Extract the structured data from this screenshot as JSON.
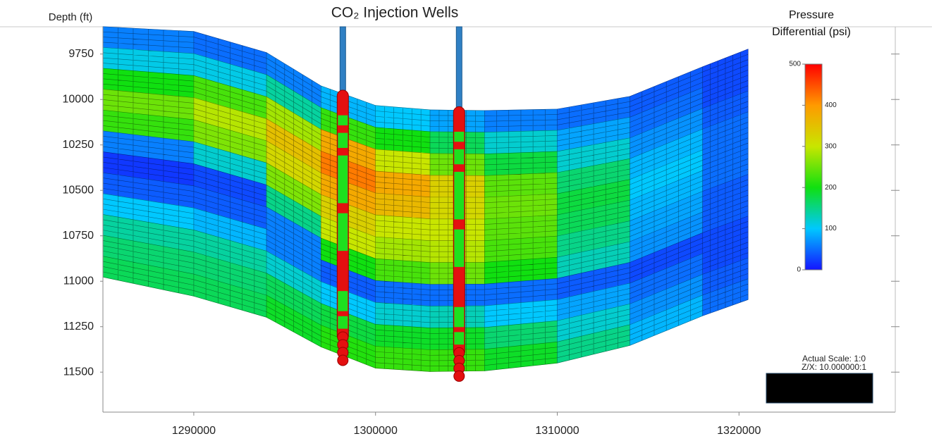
{
  "chart_data": {
    "type": "section",
    "title": "CO₂ Injection Wells",
    "y_label": "Depth (ft)",
    "colorbar_label": "Pressure Differential (psi)",
    "annotations": [
      "Actual Scale: 1:0",
      "Z/X: 10.000000:1"
    ],
    "xlim": [
      1285000,
      1328600
    ],
    "xticks": [
      1290000,
      1300000,
      1310000,
      1320000
    ],
    "ylim": [
      11720,
      9600
    ],
    "yticks": [
      9750,
      10000,
      10250,
      10500,
      10750,
      11000,
      11250,
      11500
    ],
    "clim": [
      0,
      500
    ],
    "cticks": [
      0,
      100,
      200,
      300,
      400,
      500
    ],
    "colorscale": [
      "#1414ff",
      "#00c8ff",
      "#10e010",
      "#c8e600",
      "#ff9a00",
      "#ff0000"
    ],
    "x": [
      1285000,
      1290000,
      1294000,
      1297000,
      1300000,
      1303000,
      1306000,
      1310000,
      1314000,
      1318000,
      1320500
    ],
    "top_depth": [
      9599,
      9626,
      9742,
      9925,
      10033,
      10057,
      10061,
      10053,
      9983,
      9820,
      9723
    ],
    "bottom_depth": [
      10977,
      11082,
      11198,
      11361,
      11478,
      11497,
      11493,
      11450,
      11353,
      11190,
      11101
    ],
    "z": [
      [
        60,
        50,
        60,
        90,
        100,
        80,
        60,
        50,
        40,
        30
      ],
      [
        110,
        110,
        140,
        220,
        200,
        170,
        120,
        80,
        50,
        30
      ],
      [
        200,
        230,
        280,
        380,
        300,
        250,
        180,
        120,
        70,
        40
      ],
      [
        250,
        290,
        350,
        420,
        380,
        330,
        240,
        160,
        90,
        50
      ],
      [
        220,
        260,
        320,
        380,
        360,
        320,
        250,
        180,
        100,
        50
      ],
      [
        60,
        120,
        260,
        330,
        300,
        300,
        240,
        170,
        90,
        50
      ],
      [
        20,
        30,
        150,
        300,
        280,
        290,
        230,
        150,
        80,
        40
      ],
      [
        40,
        40,
        60,
        200,
        230,
        250,
        200,
        130,
        70,
        40
      ],
      [
        100,
        90,
        60,
        40,
        50,
        50,
        50,
        40,
        30,
        30
      ],
      [
        140,
        140,
        120,
        100,
        120,
        130,
        100,
        80,
        50,
        30
      ],
      [
        160,
        160,
        170,
        180,
        190,
        190,
        160,
        120,
        70,
        40
      ],
      [
        170,
        170,
        190,
        210,
        220,
        220,
        190,
        150,
        90,
        50
      ]
    ],
    "wells_x": [
      1298200,
      1304600
    ]
  }
}
